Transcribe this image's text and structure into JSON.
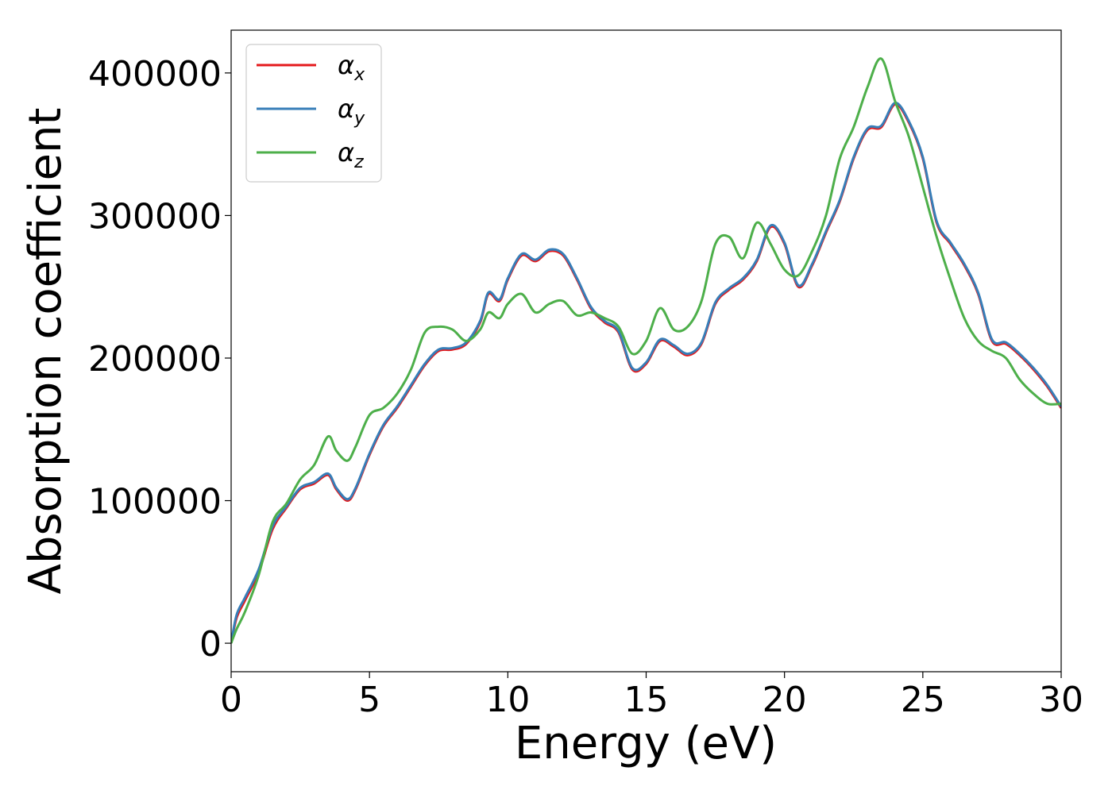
{
  "chart_data": {
    "type": "line",
    "title": "",
    "xlabel": "Energy (eV)",
    "ylabel": "Absorption coefficient",
    "xlim": [
      0,
      30
    ],
    "ylim": [
      -20000,
      430000
    ],
    "xticks": [
      0,
      5,
      10,
      15,
      20,
      25,
      30
    ],
    "xtick_labels": [
      "0",
      "5",
      "10",
      "15",
      "20",
      "25",
      "30"
    ],
    "yticks": [
      0,
      100000,
      200000,
      300000,
      400000
    ],
    "ytick_labels": [
      "0",
      "100000",
      "200000",
      "300000",
      "400000"
    ],
    "grid": false,
    "legend_position": "top-left",
    "series": [
      {
        "name": "αx",
        "legend_base": "α",
        "legend_sub": "x",
        "color": "#e41a1c",
        "x": [
          0,
          0.2,
          0.5,
          1.0,
          1.5,
          2.0,
          2.5,
          3.0,
          3.5,
          3.8,
          4.2,
          4.5,
          5.0,
          5.5,
          6.0,
          6.5,
          7.0,
          7.5,
          8.0,
          8.5,
          9.0,
          9.3,
          9.7,
          10.0,
          10.5,
          11.0,
          11.5,
          12.0,
          12.5,
          13.0,
          13.5,
          14.0,
          14.5,
          15.0,
          15.5,
          16.0,
          16.5,
          17.0,
          17.5,
          18.0,
          18.5,
          19.0,
          19.5,
          20.0,
          20.5,
          21.0,
          21.5,
          22.0,
          22.5,
          23.0,
          23.5,
          24.0,
          24.5,
          25.0,
          25.5,
          26.0,
          26.5,
          27.0,
          27.5,
          28.0,
          28.5,
          29.0,
          29.5,
          30.0
        ],
        "y": [
          0,
          18000,
          30000,
          50000,
          80000,
          95000,
          108000,
          112000,
          118000,
          108000,
          100000,
          108000,
          132000,
          152000,
          165000,
          180000,
          195000,
          205000,
          206000,
          210000,
          225000,
          245000,
          240000,
          255000,
          272000,
          268000,
          275000,
          272000,
          255000,
          235000,
          225000,
          218000,
          192000,
          196000,
          212000,
          208000,
          202000,
          210000,
          238000,
          248000,
          255000,
          268000,
          292000,
          280000,
          250000,
          265000,
          288000,
          310000,
          340000,
          360000,
          362000,
          378000,
          365000,
          340000,
          295000,
          280000,
          265000,
          245000,
          212000,
          210000,
          202000,
          192000,
          180000,
          165000
        ]
      },
      {
        "name": "αy",
        "legend_base": "α",
        "legend_sub": "y",
        "color": "#377eb8",
        "x": [
          0,
          0.2,
          0.5,
          1.0,
          1.5,
          2.0,
          2.5,
          3.0,
          3.5,
          3.8,
          4.2,
          4.5,
          5.0,
          5.5,
          6.0,
          6.5,
          7.0,
          7.5,
          8.0,
          8.5,
          9.0,
          9.3,
          9.7,
          10.0,
          10.5,
          11.0,
          11.5,
          12.0,
          12.5,
          13.0,
          13.5,
          14.0,
          14.5,
          15.0,
          15.5,
          16.0,
          16.5,
          17.0,
          17.5,
          18.0,
          18.5,
          19.0,
          19.5,
          20.0,
          20.5,
          21.0,
          21.5,
          22.0,
          22.5,
          23.0,
          23.5,
          24.0,
          24.5,
          25.0,
          25.5,
          26.0,
          26.5,
          27.0,
          27.5,
          28.0,
          28.5,
          29.0,
          29.5,
          30.0
        ],
        "y": [
          0,
          20000,
          32000,
          52000,
          82000,
          96000,
          109000,
          113000,
          119000,
          109000,
          101000,
          109000,
          133000,
          153000,
          166000,
          181000,
          196000,
          206000,
          207000,
          211000,
          226000,
          246000,
          241000,
          256000,
          273000,
          269000,
          276000,
          273000,
          256000,
          236000,
          226000,
          219000,
          193000,
          197000,
          213000,
          209000,
          203000,
          211000,
          239000,
          249000,
          256000,
          269000,
          293000,
          281000,
          251000,
          266000,
          289000,
          311000,
          341000,
          361000,
          363000,
          379000,
          366000,
          341000,
          296000,
          281000,
          266000,
          246000,
          213000,
          211000,
          203000,
          193000,
          181000,
          166000
        ]
      },
      {
        "name": "αz",
        "legend_base": "α",
        "legend_sub": "z",
        "color": "#4daf4a",
        "x": [
          0,
          0.2,
          0.5,
          1.0,
          1.5,
          2.0,
          2.5,
          3.0,
          3.5,
          3.8,
          4.2,
          4.5,
          5.0,
          5.5,
          6.0,
          6.5,
          7.0,
          7.5,
          8.0,
          8.5,
          9.0,
          9.3,
          9.7,
          10.0,
          10.5,
          11.0,
          11.5,
          12.0,
          12.5,
          13.0,
          13.5,
          14.0,
          14.5,
          15.0,
          15.5,
          16.0,
          16.5,
          17.0,
          17.5,
          18.0,
          18.5,
          19.0,
          19.5,
          20.0,
          20.5,
          21.0,
          21.5,
          22.0,
          22.5,
          23.0,
          23.5,
          24.0,
          24.5,
          25.0,
          25.5,
          26.0,
          26.5,
          27.0,
          27.5,
          28.0,
          28.5,
          29.0,
          29.5,
          30.0
        ],
        "y": [
          0,
          10000,
          22000,
          48000,
          85000,
          98000,
          115000,
          125000,
          145000,
          135000,
          128000,
          138000,
          160000,
          165000,
          175000,
          192000,
          218000,
          222000,
          220000,
          212000,
          220000,
          232000,
          228000,
          238000,
          245000,
          232000,
          238000,
          240000,
          230000,
          232000,
          228000,
          222000,
          203000,
          212000,
          235000,
          220000,
          222000,
          240000,
          280000,
          285000,
          270000,
          295000,
          280000,
          262000,
          258000,
          275000,
          300000,
          340000,
          362000,
          390000,
          410000,
          380000,
          355000,
          320000,
          285000,
          255000,
          228000,
          212000,
          205000,
          200000,
          185000,
          175000,
          168000,
          168000
        ]
      }
    ]
  }
}
